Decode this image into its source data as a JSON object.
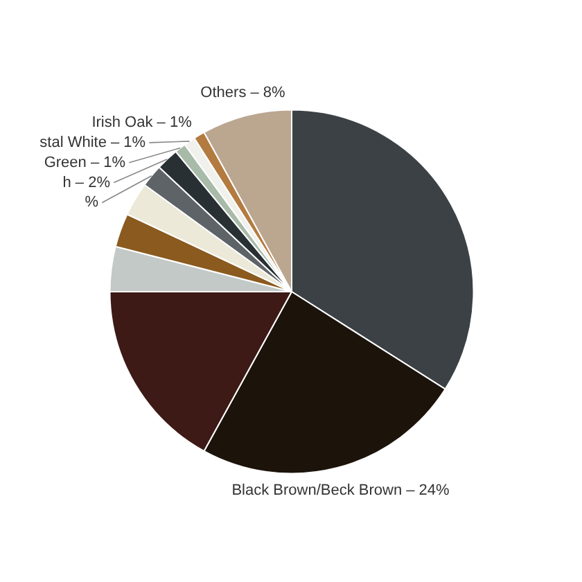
{
  "chart_data": {
    "type": "pie",
    "categories": [
      null,
      "Black Brown/Beck Brown – 24%",
      null,
      null,
      null,
      null,
      "%",
      "h – 2%",
      "Green – 1%",
      "stal White – 1%",
      "Irish Oak – 1%",
      "Others – 8%"
    ],
    "values": [
      34,
      24,
      17,
      4,
      3,
      3,
      2,
      2,
      1,
      1,
      1,
      8
    ],
    "colors": [
      "#3b4144",
      "#1c130b",
      "#3d1a16",
      "#c2c9c6",
      "#8b5a1f",
      "#ece9d8",
      "#5e6367",
      "#283034",
      "#a8baa8",
      "#f0f0ec",
      "#b37b40",
      "#bba690"
    ]
  }
}
